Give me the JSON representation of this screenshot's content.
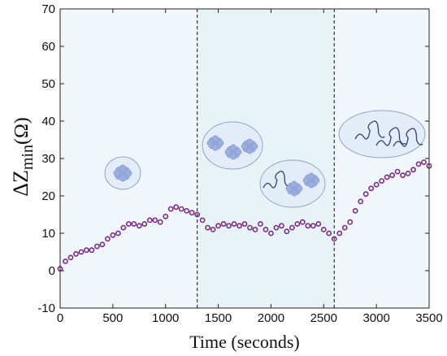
{
  "chart_data": {
    "type": "scatter",
    "xlabel": "Time (seconds)",
    "ylabel": {
      "delta": "ΔZ",
      "subscript": "min",
      "unit": "(Ω)"
    },
    "xlim": [
      0,
      3500
    ],
    "ylim": [
      -10,
      70
    ],
    "xticks": [
      0,
      500,
      1000,
      1500,
      2000,
      2500,
      3000,
      3500
    ],
    "yticks": [
      -10,
      0,
      10,
      20,
      30,
      40,
      50,
      60,
      70
    ],
    "grid": false,
    "phase_boundaries": [
      1300,
      2600
    ],
    "phase_shading_colors": [
      "#f1f6fb",
      "#e8f3f8",
      "#f1f6fb"
    ],
    "series": [
      {
        "marker": "open-circle",
        "color": "#7a2c86",
        "x": [
          0,
          50,
          100,
          150,
          200,
          250,
          300,
          350,
          400,
          450,
          500,
          550,
          600,
          650,
          700,
          750,
          800,
          850,
          900,
          950,
          1000,
          1050,
          1100,
          1150,
          1200,
          1250,
          1300,
          1350,
          1400,
          1450,
          1500,
          1550,
          1600,
          1650,
          1700,
          1750,
          1800,
          1850,
          1900,
          1950,
          2000,
          2050,
          2100,
          2150,
          2200,
          2250,
          2300,
          2350,
          2400,
          2450,
          2500,
          2550,
          2600,
          2650,
          2700,
          2750,
          2800,
          2850,
          2900,
          2950,
          3000,
          3050,
          3100,
          3150,
          3200,
          3250,
          3300,
          3350,
          3400,
          3450,
          3500
        ],
        "y": [
          0.5,
          2.5,
          3.5,
          4.5,
          5.0,
          5.5,
          5.5,
          6.5,
          7.0,
          8.5,
          9.5,
          10.0,
          11.5,
          12.5,
          12.5,
          12.0,
          12.5,
          13.5,
          13.5,
          13.0,
          14.5,
          16.5,
          17.0,
          16.5,
          16.0,
          15.5,
          15.0,
          13.5,
          11.5,
          11.0,
          12.0,
          12.5,
          12.0,
          12.5,
          12.0,
          12.5,
          11.5,
          11.0,
          12.5,
          11.0,
          10.0,
          11.5,
          12.0,
          10.5,
          11.5,
          12.5,
          13.0,
          12.0,
          12.0,
          12.5,
          11.0,
          10.0,
          8.5,
          10.0,
          11.5,
          13.0,
          16.0,
          18.5,
          20.5,
          22.0,
          23.0,
          24.0,
          25.0,
          25.5,
          26.5,
          25.5,
          26.0,
          27.0,
          28.5,
          29.0,
          28.0
        ]
      }
    ]
  },
  "insets": [
    {
      "name": "single-protein",
      "icon": "protein-cluster-icon"
    },
    {
      "name": "protein-aggregates",
      "icon": "protein-cluster-icon"
    },
    {
      "name": "protein-and-chain",
      "icon": "polymer-chain-icon"
    },
    {
      "name": "polymer-chains",
      "icon": "polymer-chain-icon"
    }
  ],
  "colors": {
    "marker": "#7a2c86",
    "inset_fill": "#e3ecf7",
    "inset_stroke": "#8ea6c4",
    "protein": "#9aaee0",
    "chain": "#3a4f78"
  }
}
